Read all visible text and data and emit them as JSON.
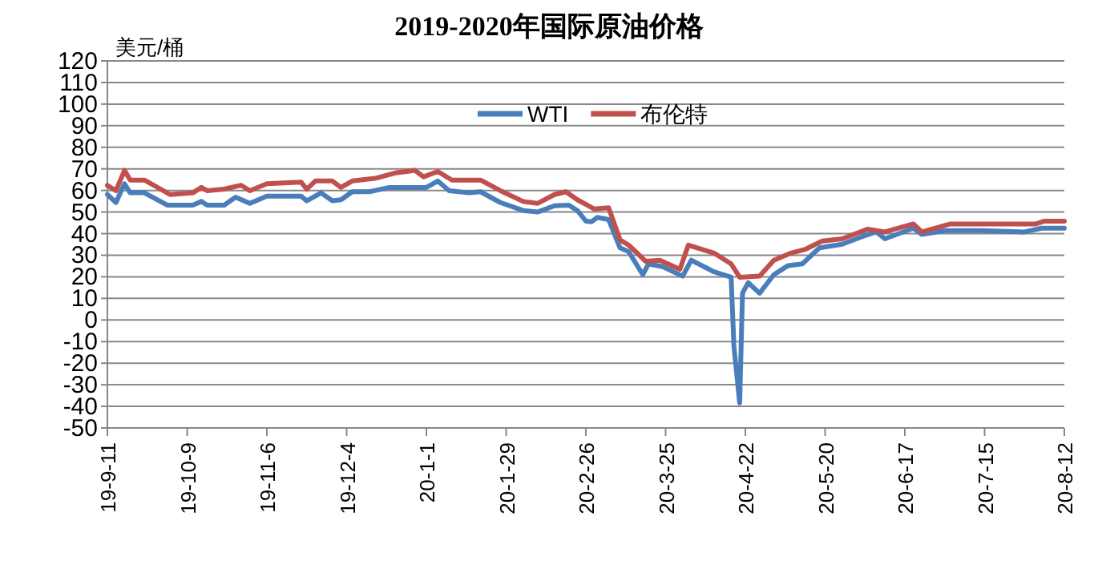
{
  "chart_data": {
    "type": "line",
    "title": "2019-2020年国际原油价格",
    "ylabel": "美元/桶",
    "xlim": [
      "2019-09-11",
      "2020-08-12"
    ],
    "xticks": [
      {
        "value": "2019-09-11",
        "label": "19-9-11"
      },
      {
        "value": "2019-10-09",
        "label": "19-10-9"
      },
      {
        "value": "2019-11-06",
        "label": "19-11-6"
      },
      {
        "value": "2019-12-04",
        "label": "19-12-4"
      },
      {
        "value": "2020-01-01",
        "label": "20-1-1"
      },
      {
        "value": "2020-01-29",
        "label": "20-1-29"
      },
      {
        "value": "2020-02-26",
        "label": "20-2-26"
      },
      {
        "value": "2020-03-25",
        "label": "20-3-25"
      },
      {
        "value": "2020-04-22",
        "label": "20-4-22"
      },
      {
        "value": "2020-05-20",
        "label": "20-5-20"
      },
      {
        "value": "2020-06-17",
        "label": "20-6-17"
      },
      {
        "value": "2020-07-15",
        "label": "20-7-15"
      },
      {
        "value": "2020-08-12",
        "label": "20-8-12"
      }
    ],
    "ylim": [
      -50,
      120
    ],
    "yticks": [
      -50,
      -40,
      -30,
      -20,
      -10,
      0,
      10,
      20,
      30,
      40,
      50,
      60,
      70,
      80,
      90,
      100,
      110,
      120
    ],
    "grid": "y",
    "legend": "top",
    "marker": "none",
    "line_style": "solid",
    "series": [
      {
        "name": "WTI",
        "color": "#4a7ebb",
        "x": [
          "2019-09-11",
          "2019-09-14",
          "2019-09-17",
          "2019-09-19",
          "2019-09-24",
          "2019-10-02",
          "2019-10-11",
          "2019-10-14",
          "2019-10-16",
          "2019-10-22",
          "2019-10-26",
          "2019-10-31",
          "2019-11-06",
          "2019-11-18",
          "2019-11-20",
          "2019-11-25",
          "2019-11-29",
          "2019-12-02",
          "2019-12-06",
          "2019-12-12",
          "2019-12-19",
          "2020-01-01",
          "2020-01-05",
          "2020-01-09",
          "2020-01-16",
          "2020-01-20",
          "2020-01-27",
          "2020-02-04",
          "2020-02-09",
          "2020-02-15",
          "2020-02-20",
          "2020-02-23",
          "2020-02-26",
          "2020-02-28",
          "2020-03-01",
          "2020-03-05",
          "2020-03-09",
          "2020-03-12",
          "2020-03-17",
          "2020-03-19",
          "2020-03-24",
          "2020-03-31",
          "2020-04-03",
          "2020-04-11",
          "2020-04-17",
          "2020-04-18",
          "2020-04-20",
          "2020-04-21",
          "2020-04-23",
          "2020-04-27",
          "2020-05-02",
          "2020-05-07",
          "2020-05-12",
          "2020-05-18",
          "2020-05-26",
          "2020-06-03",
          "2020-06-07",
          "2020-06-10",
          "2020-06-20",
          "2020-06-23",
          "2020-07-01",
          "2020-07-14",
          "2020-07-29",
          "2020-08-04",
          "2020-08-12"
        ],
        "values": [
          58.1,
          54.4,
          63.1,
          58.9,
          58.9,
          53.2,
          53.2,
          54.9,
          53.2,
          53.2,
          56.9,
          54,
          57.4,
          57.4,
          55.2,
          58.9,
          55.2,
          55.7,
          59.4,
          59.4,
          61.4,
          61.4,
          64.4,
          59.9,
          58.9,
          59.4,
          54.4,
          50.7,
          50,
          52.9,
          53.2,
          50.7,
          45.8,
          45.5,
          47.5,
          46.5,
          33.4,
          31.7,
          21,
          26,
          24.7,
          20.3,
          27.7,
          22.3,
          19.8,
          -12.4,
          -38.4,
          12.4,
          17.3,
          12.4,
          21,
          25.2,
          26,
          33.4,
          35.1,
          39.1,
          40.8,
          37.6,
          42.5,
          39.6,
          41.4,
          41.4,
          40.8,
          42.5,
          42.5
        ]
      },
      {
        "name": "布伦特",
        "color": "#c0504d",
        "x": [
          "2019-09-11",
          "2019-09-14",
          "2019-09-17",
          "2019-09-19",
          "2019-09-24",
          "2019-10-03",
          "2019-10-11",
          "2019-10-14",
          "2019-10-16",
          "2019-10-22",
          "2019-10-28",
          "2019-10-31",
          "2019-11-06",
          "2019-11-18",
          "2019-11-20",
          "2019-11-23",
          "2019-11-29",
          "2019-12-02",
          "2019-12-06",
          "2019-12-14",
          "2019-12-21",
          "2019-12-28",
          "2019-12-31",
          "2020-01-05",
          "2020-01-10",
          "2020-01-20",
          "2020-01-27",
          "2020-02-04",
          "2020-02-09",
          "2020-02-15",
          "2020-02-19",
          "2020-02-23",
          "2020-02-29",
          "2020-03-05",
          "2020-03-09",
          "2020-03-12",
          "2020-03-18",
          "2020-03-23",
          "2020-03-30",
          "2020-04-02",
          "2020-04-11",
          "2020-04-17",
          "2020-04-20",
          "2020-04-27",
          "2020-05-02",
          "2020-05-08",
          "2020-05-13",
          "2020-05-19",
          "2020-05-26",
          "2020-06-04",
          "2020-06-10",
          "2020-06-20",
          "2020-06-23",
          "2020-07-03",
          "2020-07-22",
          "2020-08-02",
          "2020-08-05",
          "2020-08-12"
        ],
        "values": [
          62.4,
          59.9,
          69.3,
          64.8,
          64.8,
          58.1,
          58.9,
          61.4,
          59.9,
          60.6,
          62.4,
          59.9,
          63.1,
          63.9,
          60.6,
          64.4,
          64.4,
          61.4,
          64.4,
          65.6,
          68.1,
          69.3,
          66.3,
          68.8,
          64.8,
          64.8,
          59.9,
          54.9,
          54,
          58.1,
          59.4,
          55.7,
          51.4,
          52,
          37.1,
          34.7,
          27.2,
          27.7,
          23.5,
          34.7,
          31,
          26,
          19.8,
          20.3,
          27.7,
          31,
          32.7,
          36.6,
          37.6,
          42.1,
          40.8,
          44.5,
          40.8,
          44.5,
          44.5,
          44.5,
          45.8,
          45.8
        ]
      }
    ]
  }
}
